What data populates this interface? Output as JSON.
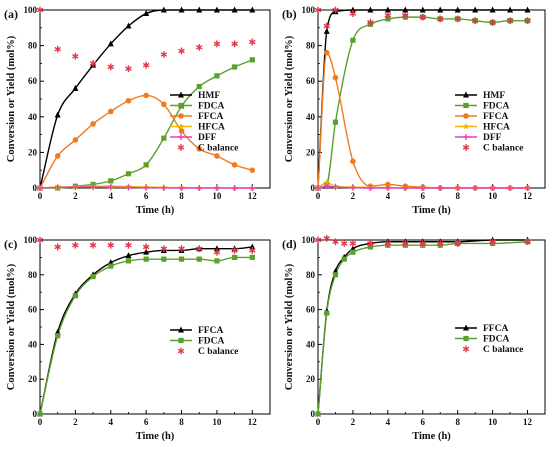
{
  "chart_data": [
    {
      "type": "line",
      "label": "(a)",
      "xlabel": "Time (h)",
      "ylabel": "Conversion or Yield (mol%)",
      "xlim": [
        0,
        13
      ],
      "ylim": [
        0,
        100
      ],
      "xticks": [
        0,
        2,
        4,
        6,
        8,
        10,
        12
      ],
      "yticks": [
        0,
        20,
        40,
        60,
        80,
        100
      ],
      "legend_position": "lower-right",
      "series": [
        {
          "name": "HMF",
          "color": "#000000",
          "marker": "triangle",
          "x": [
            0,
            1,
            2,
            3,
            4,
            5,
            6,
            7,
            8,
            9,
            10,
            11,
            12
          ],
          "y": [
            0,
            41,
            56,
            69,
            81,
            91,
            98,
            100,
            100,
            100,
            100,
            100,
            100
          ]
        },
        {
          "name": "FDCA",
          "color": "#5aa02c",
          "marker": "square",
          "x": [
            0,
            1,
            2,
            3,
            4,
            5,
            6,
            7,
            8,
            9,
            10,
            11,
            12
          ],
          "y": [
            0,
            0,
            1,
            2,
            4,
            8,
            13,
            28,
            46,
            57,
            63,
            68,
            72
          ]
        },
        {
          "name": "FFCA",
          "color": "#f07a22",
          "marker": "circle",
          "x": [
            0,
            1,
            2,
            3,
            4,
            5,
            6,
            7,
            8,
            9,
            10,
            11,
            12
          ],
          "y": [
            0,
            18,
            27,
            36,
            43,
            49,
            52,
            47,
            32,
            22,
            18,
            13,
            10
          ]
        },
        {
          "name": "HFCA",
          "color": "#f2b400",
          "marker": "star",
          "x": [
            0,
            1,
            2,
            3,
            4,
            5,
            6,
            7,
            8,
            9,
            10,
            11,
            12
          ],
          "y": [
            0,
            0.5,
            0.8,
            1,
            1,
            0.8,
            0.5,
            0.3,
            0.2,
            0.1,
            0.1,
            0,
            0
          ]
        },
        {
          "name": "DFF",
          "color": "#e040c0",
          "marker": "plus",
          "x": [
            0,
            1,
            2,
            3,
            4,
            5,
            6,
            7,
            8,
            9,
            10,
            11,
            12
          ],
          "y": [
            0,
            0.3,
            0.5,
            0.5,
            0.4,
            0.3,
            0.2,
            0.1,
            0,
            0,
            0,
            0,
            0
          ]
        },
        {
          "name": "C balance",
          "color": "#e03a4a",
          "marker": "asterisk",
          "line": false,
          "x": [
            0,
            1,
            2,
            3,
            4,
            5,
            6,
            7,
            8,
            9,
            10,
            11,
            12
          ],
          "y": [
            100,
            78,
            74,
            70,
            68,
            67,
            69,
            75,
            77,
            79,
            81,
            81,
            82
          ]
        }
      ]
    },
    {
      "type": "line",
      "label": "(b)",
      "xlabel": "Time (h)",
      "ylabel": "Conversion or Yield (mol%)",
      "xlim": [
        0,
        13
      ],
      "ylim": [
        0,
        100
      ],
      "xticks": [
        0,
        2,
        4,
        6,
        8,
        10,
        12
      ],
      "yticks": [
        0,
        20,
        40,
        60,
        80,
        100
      ],
      "legend_position": "center-right",
      "series": [
        {
          "name": "HMF",
          "color": "#000000",
          "marker": "triangle",
          "x": [
            0,
            0.5,
            1,
            2,
            3,
            4,
            5,
            6,
            7,
            8,
            9,
            10,
            11,
            12
          ],
          "y": [
            0,
            88,
            99,
            100,
            100,
            100,
            100,
            100,
            100,
            100,
            100,
            100,
            100,
            100
          ]
        },
        {
          "name": "FDCA",
          "color": "#5aa02c",
          "marker": "square",
          "x": [
            0,
            0.5,
            1,
            2,
            3,
            4,
            5,
            6,
            7,
            8,
            9,
            10,
            11,
            12
          ],
          "y": [
            0,
            2,
            37,
            83,
            92,
            95,
            96,
            96,
            95,
            95,
            94,
            93,
            94,
            94
          ]
        },
        {
          "name": "FFCA",
          "color": "#f07a22",
          "marker": "circle",
          "x": [
            0,
            0.5,
            1,
            2,
            3,
            4,
            5,
            6,
            7,
            8,
            9,
            10,
            11,
            12
          ],
          "y": [
            0,
            76,
            62,
            15,
            1,
            2,
            1,
            0.5,
            0,
            0,
            0,
            0,
            0,
            0
          ]
        },
        {
          "name": "HFCA",
          "color": "#f2b400",
          "marker": "star",
          "x": [
            0,
            0.5,
            1,
            2,
            3,
            4,
            5,
            6,
            7,
            8,
            9,
            10,
            11,
            12
          ],
          "y": [
            0,
            3,
            1,
            0.5,
            0.3,
            0.2,
            0,
            0,
            0,
            0,
            0,
            0,
            0,
            0
          ]
        },
        {
          "name": "DFF",
          "color": "#e040c0",
          "marker": "plus",
          "x": [
            0,
            0.5,
            1,
            2,
            3,
            4,
            5,
            6,
            7,
            8,
            9,
            10,
            11,
            12
          ],
          "y": [
            0,
            1,
            0.5,
            0.2,
            0,
            0,
            0,
            0,
            0,
            0,
            0,
            0,
            0,
            0
          ]
        },
        {
          "name": "C balance",
          "color": "#e03a4a",
          "marker": "asterisk",
          "line": false,
          "x": [
            0,
            0.5,
            1,
            2,
            3,
            4,
            5,
            6,
            7,
            8,
            9,
            10,
            11,
            12
          ],
          "y": [
            100,
            91,
            100,
            98,
            93,
            97,
            97,
            96,
            95,
            95,
            94,
            93,
            94,
            94
          ]
        }
      ]
    },
    {
      "type": "line",
      "label": "(c)",
      "xlabel": "Time (h)",
      "ylabel": "Conversion or Yield (mol%)",
      "xlim": [
        0,
        13
      ],
      "ylim": [
        0,
        100
      ],
      "xticks": [
        0,
        2,
        4,
        6,
        8,
        10,
        12
      ],
      "yticks": [
        0,
        20,
        40,
        60,
        80,
        100
      ],
      "legend_position": "center-right",
      "series": [
        {
          "name": "FFCA",
          "color": "#000000",
          "marker": "triangle",
          "x": [
            0,
            1,
            2,
            3,
            4,
            5,
            6,
            7,
            8,
            9,
            10,
            11,
            12
          ],
          "y": [
            0,
            47,
            69,
            80,
            87,
            91,
            93,
            94,
            94,
            95,
            95,
            95,
            96
          ]
        },
        {
          "name": "FDCA",
          "color": "#5aa02c",
          "marker": "square",
          "x": [
            0,
            1,
            2,
            3,
            4,
            5,
            6,
            7,
            8,
            9,
            10,
            11,
            12
          ],
          "y": [
            0,
            45,
            68,
            79,
            85,
            88,
            89,
            89,
            89,
            89,
            88,
            90,
            90
          ]
        },
        {
          "name": "C balance",
          "color": "#e03a4a",
          "marker": "asterisk",
          "line": false,
          "x": [
            0,
            1,
            2,
            3,
            4,
            5,
            6,
            7,
            8,
            9,
            10,
            11,
            12
          ],
          "y": [
            100,
            96,
            97,
            97,
            97,
            97,
            96,
            95,
            95,
            95,
            93,
            94,
            94
          ]
        }
      ]
    },
    {
      "type": "line",
      "label": "(d)",
      "xlabel": "Time (h)",
      "ylabel": "Conversion or Yield (mol%)",
      "xlim": [
        0,
        13
      ],
      "ylim": [
        0,
        100
      ],
      "xticks": [
        0,
        2,
        4,
        6,
        8,
        10,
        12
      ],
      "yticks": [
        0,
        20,
        40,
        60,
        80,
        100
      ],
      "legend_position": "center-right",
      "series": [
        {
          "name": "FFCA",
          "color": "#000000",
          "marker": "triangle",
          "x": [
            0,
            0.5,
            1,
            1.5,
            2,
            3,
            4,
            5,
            6,
            7,
            8,
            10,
            12
          ],
          "y": [
            0,
            59,
            82,
            90,
            95,
            98,
            99,
            99,
            99,
            99,
            99,
            100,
            100
          ]
        },
        {
          "name": "FDCA",
          "color": "#5aa02c",
          "marker": "square",
          "x": [
            0,
            0.5,
            1,
            1.5,
            2,
            3,
            4,
            5,
            6,
            7,
            8,
            10,
            12
          ],
          "y": [
            0,
            58,
            80,
            89,
            93,
            96,
            97,
            97,
            97,
            97,
            98,
            98,
            99
          ]
        },
        {
          "name": "C balance",
          "color": "#e03a4a",
          "marker": "asterisk",
          "line": false,
          "x": [
            0,
            0.5,
            1,
            1.5,
            2,
            3,
            4,
            5,
            6,
            7,
            8,
            10,
            12
          ],
          "y": [
            100,
            101,
            99,
            98,
            98,
            98,
            98,
            98,
            98,
            98,
            98,
            99,
            99
          ]
        }
      ]
    }
  ]
}
